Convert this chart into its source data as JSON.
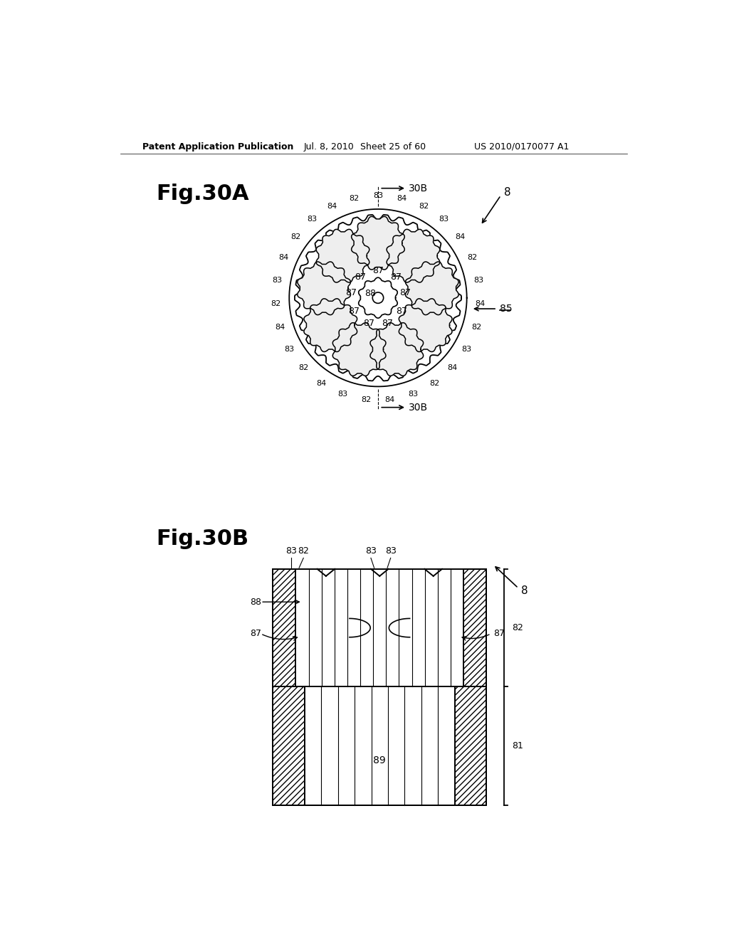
{
  "background_color": "#ffffff",
  "header_text": "Patent Application Publication",
  "header_date": "Jul. 8, 2010",
  "header_sheet": "Sheet 25 of 60",
  "header_patent": "US 2010/0170077 A1",
  "fig30A_title": "Fig.30A",
  "fig30B_title": "Fig.30B",
  "text_color": "#000000",
  "line_color": "#000000"
}
